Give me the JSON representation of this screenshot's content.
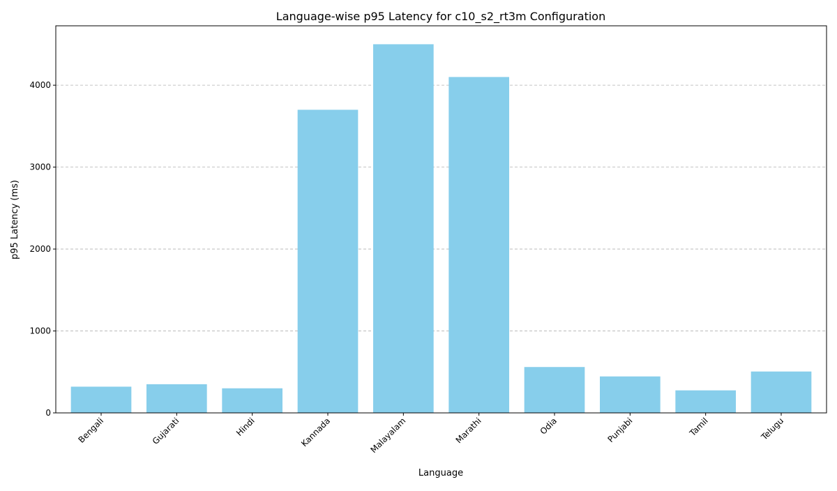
{
  "chart_data": {
    "type": "bar",
    "title": "Language-wise p95 Latency for c10_s2_rt3m Configuration",
    "xlabel": "Language",
    "ylabel": "p95 Latency (ms)",
    "categories": [
      "Bengali",
      "Gujarati",
      "Hindi",
      "Kannada",
      "Malayalam",
      "Marathi",
      "Odia",
      "Punjabi",
      "Tamil",
      "Telugu"
    ],
    "values": [
      320,
      350,
      300,
      3700,
      4500,
      4100,
      560,
      445,
      275,
      505
    ],
    "ylim": [
      0,
      4725
    ],
    "yticks": [
      0,
      1000,
      2000,
      3000,
      4000
    ],
    "grid": "y-dashed",
    "bar_color": "#87ceeb",
    "x_tick_rotation": 45
  }
}
